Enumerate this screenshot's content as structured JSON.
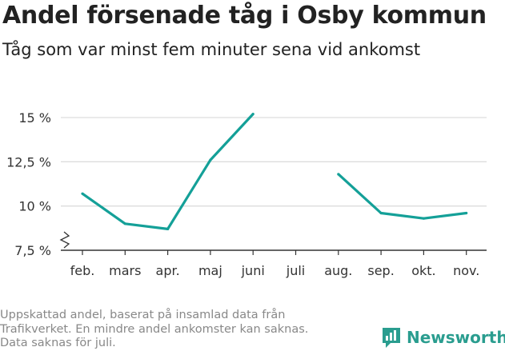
{
  "header": {
    "title": "Andel försenade tåg i Osby kommun",
    "subtitle": "Tåg som var minst fem minuter sena vid ankomst"
  },
  "footer": {
    "note": [
      "Uppskattad andel, baserat på insamlad data från",
      "Trafikverket. En mindre andel ankomster kan saknas.",
      "Data saknas för juli."
    ],
    "brand": "Newsworthy"
  },
  "colors": {
    "line": "#14a098",
    "grid": "#dddddd",
    "axis": "#333333",
    "brand": "#2a9d8f"
  },
  "chart_data": {
    "type": "line",
    "categories": [
      "feb.",
      "mars",
      "apr.",
      "maj",
      "juni",
      "juli",
      "aug.",
      "sep.",
      "okt.",
      "nov."
    ],
    "series": [
      {
        "values": [
          10.7,
          9.0,
          8.7,
          12.6,
          15.2,
          null,
          11.8,
          9.6,
          9.3,
          9.6
        ]
      }
    ],
    "yticks": [
      7.5,
      10,
      12.5,
      15
    ],
    "ytick_labels": [
      "7,5 %",
      "10 %",
      "12,5 %",
      "15 %"
    ],
    "ylim": [
      7.5,
      16
    ],
    "y_axis_break": true,
    "grid": true
  }
}
